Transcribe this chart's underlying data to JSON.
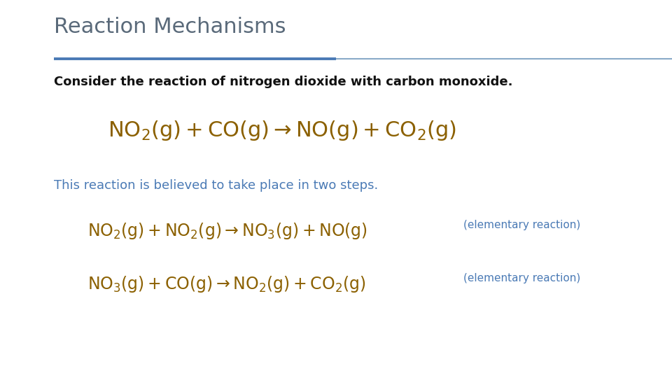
{
  "title": "Reaction Mechanisms",
  "title_color": "#5a6a7a",
  "title_fontsize": 22,
  "bg_color": "#ffffff",
  "divider_color1": "#4a7ab5",
  "divider_color2": "#8aaac8",
  "consider_text": "Consider the reaction of nitrogen dioxide with carbon monoxide.",
  "consider_color": "#111111",
  "consider_fontsize": 13,
  "main_eq": "$\\mathrm{NO_2(g)+CO(g)\\rightarrow NO(g)+CO_2(g)}$",
  "main_eq_color": "#8B6000",
  "main_eq_fontsize": 22,
  "steps_text": "This reaction is believed to take place in two steps.",
  "steps_color": "#4a7ab5",
  "steps_fontsize": 13,
  "eq1": "$\\mathrm{NO_2(g)+NO_2(g)\\rightarrow NO_3(g)+NO(g)}$",
  "eq1_color": "#8B6000",
  "eq1_fontsize": 17,
  "eq1_label": "(elementary reaction)",
  "eq1_label_color": "#4a7ab5",
  "eq1_label_fontsize": 11,
  "eq2": "$\\mathrm{NO_3(g)+CO(g)\\rightarrow NO_2(g)+CO_2(g)}$",
  "eq2_color": "#8B6000",
  "eq2_fontsize": 17,
  "eq2_label": "(elementary reaction)",
  "eq2_label_color": "#4a7ab5",
  "eq2_label_fontsize": 11
}
